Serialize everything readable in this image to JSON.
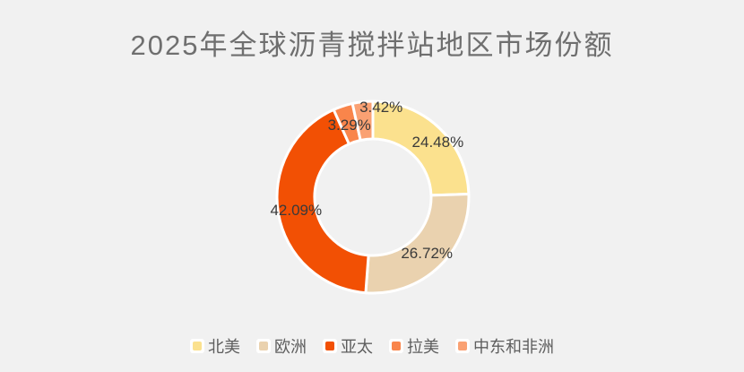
{
  "style": {
    "background": "#f1f1f1",
    "title_color": "#6f6f6f",
    "label_color": "#3a3a3a",
    "legend_text_color": "#5e5e5e",
    "slice_border_color": "#ffffff"
  },
  "chart_data": {
    "type": "pie",
    "subtype": "donut",
    "title": "2025年全球沥青搅拌站地区市场份额",
    "unit": "%",
    "direction": "clockwise",
    "start_angle_deg": 0,
    "legend_position": "bottom",
    "slices": [
      {
        "name": "北美",
        "value": 24.48,
        "label": "24.48%",
        "color": "#FBE18E"
      },
      {
        "name": "欧洲",
        "value": 26.72,
        "label": "26.72%",
        "color": "#EAD2AF"
      },
      {
        "name": "亚太",
        "value": 42.09,
        "label": "42.09%",
        "color": "#F25004"
      },
      {
        "name": "拉美",
        "value": 3.29,
        "label": "3.29%",
        "color": "#F9854B"
      },
      {
        "name": "中东和非洲",
        "value": 3.42,
        "label": "3.42%",
        "color": "#FAA173"
      }
    ]
  }
}
